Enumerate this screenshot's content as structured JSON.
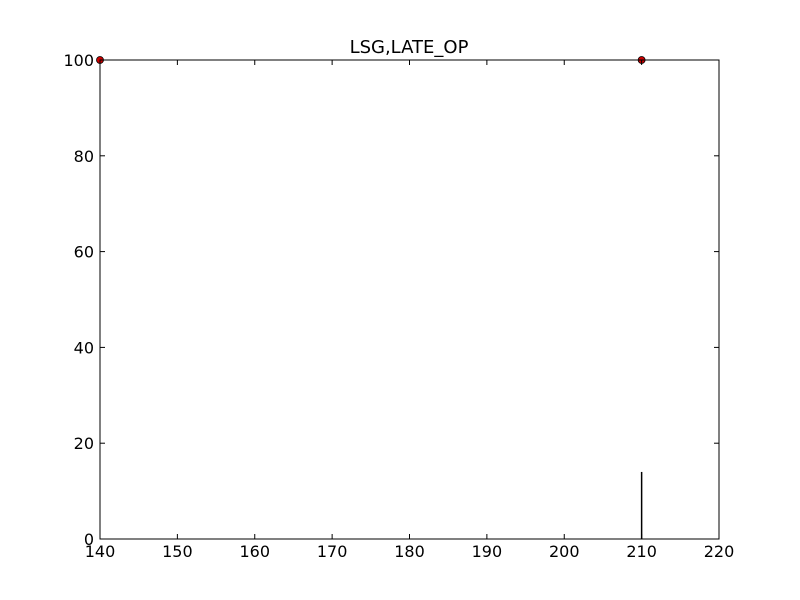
{
  "chart_data": {
    "type": "scatter",
    "title": "LSG,LATE_OP",
    "xlabel": "",
    "ylabel": "",
    "xlim": [
      140,
      220
    ],
    "ylim": [
      0,
      100
    ],
    "x_ticks": [
      "140",
      "150",
      "160",
      "170",
      "180",
      "190",
      "200",
      "210",
      "220"
    ],
    "y_ticks": [
      "0",
      "20",
      "40",
      "60",
      "80",
      "100"
    ],
    "grid": false,
    "series": [
      {
        "type": "scatter",
        "color": "#cc0000",
        "points": [
          {
            "x": 140,
            "y": 100
          },
          {
            "x": 210,
            "y": 100
          }
        ]
      },
      {
        "type": "bar",
        "color": "#000000",
        "points": [
          {
            "x": 210,
            "y": 14
          }
        ]
      }
    ]
  }
}
